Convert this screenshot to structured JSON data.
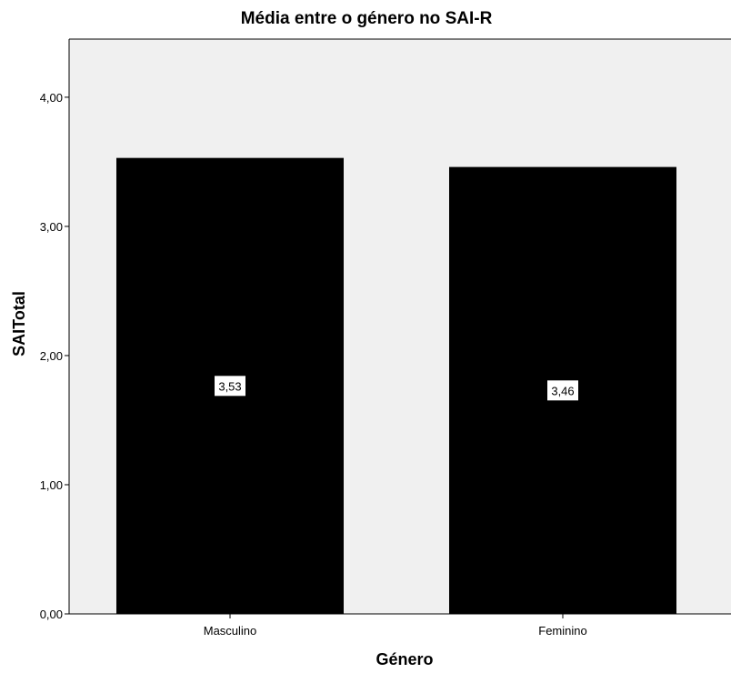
{
  "chart_data": {
    "type": "bar",
    "title": "Média entre o género no SAI-R",
    "xlabel": "Género",
    "ylabel": "SAITotal",
    "categories": [
      "Masculino",
      "Feminino"
    ],
    "values": [
      3.53,
      3.46
    ],
    "data_labels": [
      "3,53",
      "3,46"
    ],
    "ylim": [
      0,
      4.45
    ],
    "yticks": [
      0,
      1,
      2,
      3,
      4
    ],
    "ytick_labels": [
      "0,00",
      "1,00",
      "2,00",
      "3,00",
      "4,00"
    ],
    "grid": false,
    "legend": "none",
    "colors": {
      "bar": "#000000",
      "plot_background": "#f0f0f0",
      "label_box": "#ffffff",
      "axis": "#000000"
    }
  }
}
